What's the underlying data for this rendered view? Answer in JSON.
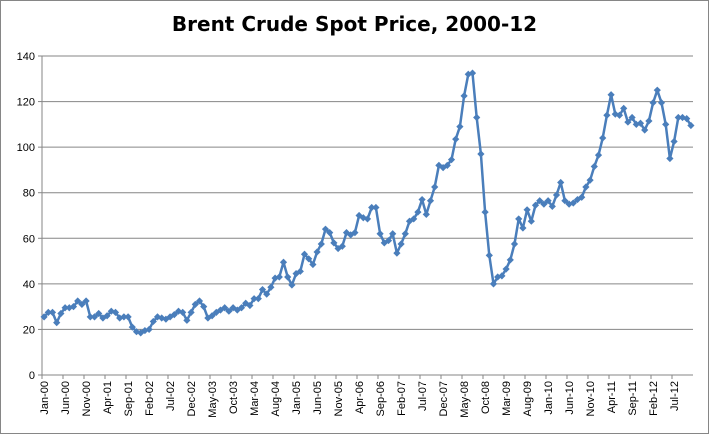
{
  "chart_data": {
    "type": "line",
    "title": "Brent Crude Spot Price, 2000-12",
    "xlabel": "",
    "ylabel": "",
    "ylim": [
      0,
      140
    ],
    "yticks": [
      0,
      20,
      40,
      60,
      80,
      100,
      120,
      140
    ],
    "grid": true,
    "legend": "none",
    "series_color": "#4a7ebb",
    "x_tick_labels": [
      "Jan-00",
      "Jun-00",
      "Nov-00",
      "Apr-01",
      "Sep-01",
      "Feb-02",
      "Jul-02",
      "Dec-02",
      "May-03",
      "Oct-03",
      "Mar-04",
      "Aug-04",
      "Jan-05",
      "Jun-05",
      "Nov-05",
      "Apr-06",
      "Sep-06",
      "Feb-07",
      "Jul-07",
      "Dec-07",
      "May-08",
      "Oct-08",
      "Mar-09",
      "Aug-09",
      "Jan-10",
      "Jun-10",
      "Nov-10",
      "Apr-11",
      "Sep-11",
      "Feb-12",
      "Jul-12"
    ],
    "x_tick_index": [
      0,
      5,
      10,
      15,
      20,
      25,
      30,
      35,
      40,
      45,
      50,
      55,
      60,
      65,
      70,
      75,
      80,
      85,
      90,
      95,
      100,
      105,
      110,
      115,
      120,
      125,
      130,
      135,
      140,
      145,
      150
    ],
    "x_start": "Jan-00",
    "frequency": "monthly",
    "values": [
      25.5,
      27.5,
      27.5,
      23,
      27,
      29.5,
      29.5,
      30,
      32.5,
      31,
      32.5,
      25.5,
      25.5,
      27,
      25,
      26,
      28,
      27.5,
      25,
      25.5,
      25.5,
      21,
      19,
      18.5,
      19.5,
      20,
      23.5,
      25.5,
      25,
      24.5,
      25.5,
      26.5,
      28,
      27.5,
      24,
      27.5,
      31,
      32.5,
      30,
      25,
      26,
      27.5,
      28.5,
      29.5,
      28,
      29.5,
      28.5,
      29.5,
      31.5,
      30.5,
      33.5,
      33.5,
      37.5,
      35.5,
      38.5,
      42.5,
      43,
      49.5,
      43,
      39.5,
      44.5,
      45.5,
      53,
      51,
      48.5,
      54,
      57.5,
      64,
      62.5,
      58,
      55.5,
      56.5,
      62.5,
      61.5,
      62.5,
      70,
      69,
      68.5,
      73.5,
      73.5,
      62,
      58,
      59,
      62,
      53.5,
      57.5,
      62,
      67.5,
      68.5,
      71.5,
      77,
      70.5,
      76.5,
      82.5,
      92,
      91,
      92,
      94.5,
      103.5,
      109,
      122.5,
      132,
      132.5,
      113,
      97,
      71.5,
      52.5,
      40,
      43,
      43.5,
      46.5,
      50.5,
      57.5,
      68.5,
      64.5,
      72.5,
      67.5,
      74.5,
      76.5,
      75,
      76.5,
      74,
      79,
      84.5,
      76.5,
      75,
      75.5,
      77,
      78,
      82.5,
      85.5,
      91.5,
      96.5,
      104,
      114,
      123,
      114.5,
      114,
      117,
      111,
      113,
      110,
      110.5,
      107.5,
      111.5,
      119.5,
      125,
      119.5,
      110,
      95,
      102.5,
      113,
      113,
      112.5,
      109.5
    ]
  }
}
